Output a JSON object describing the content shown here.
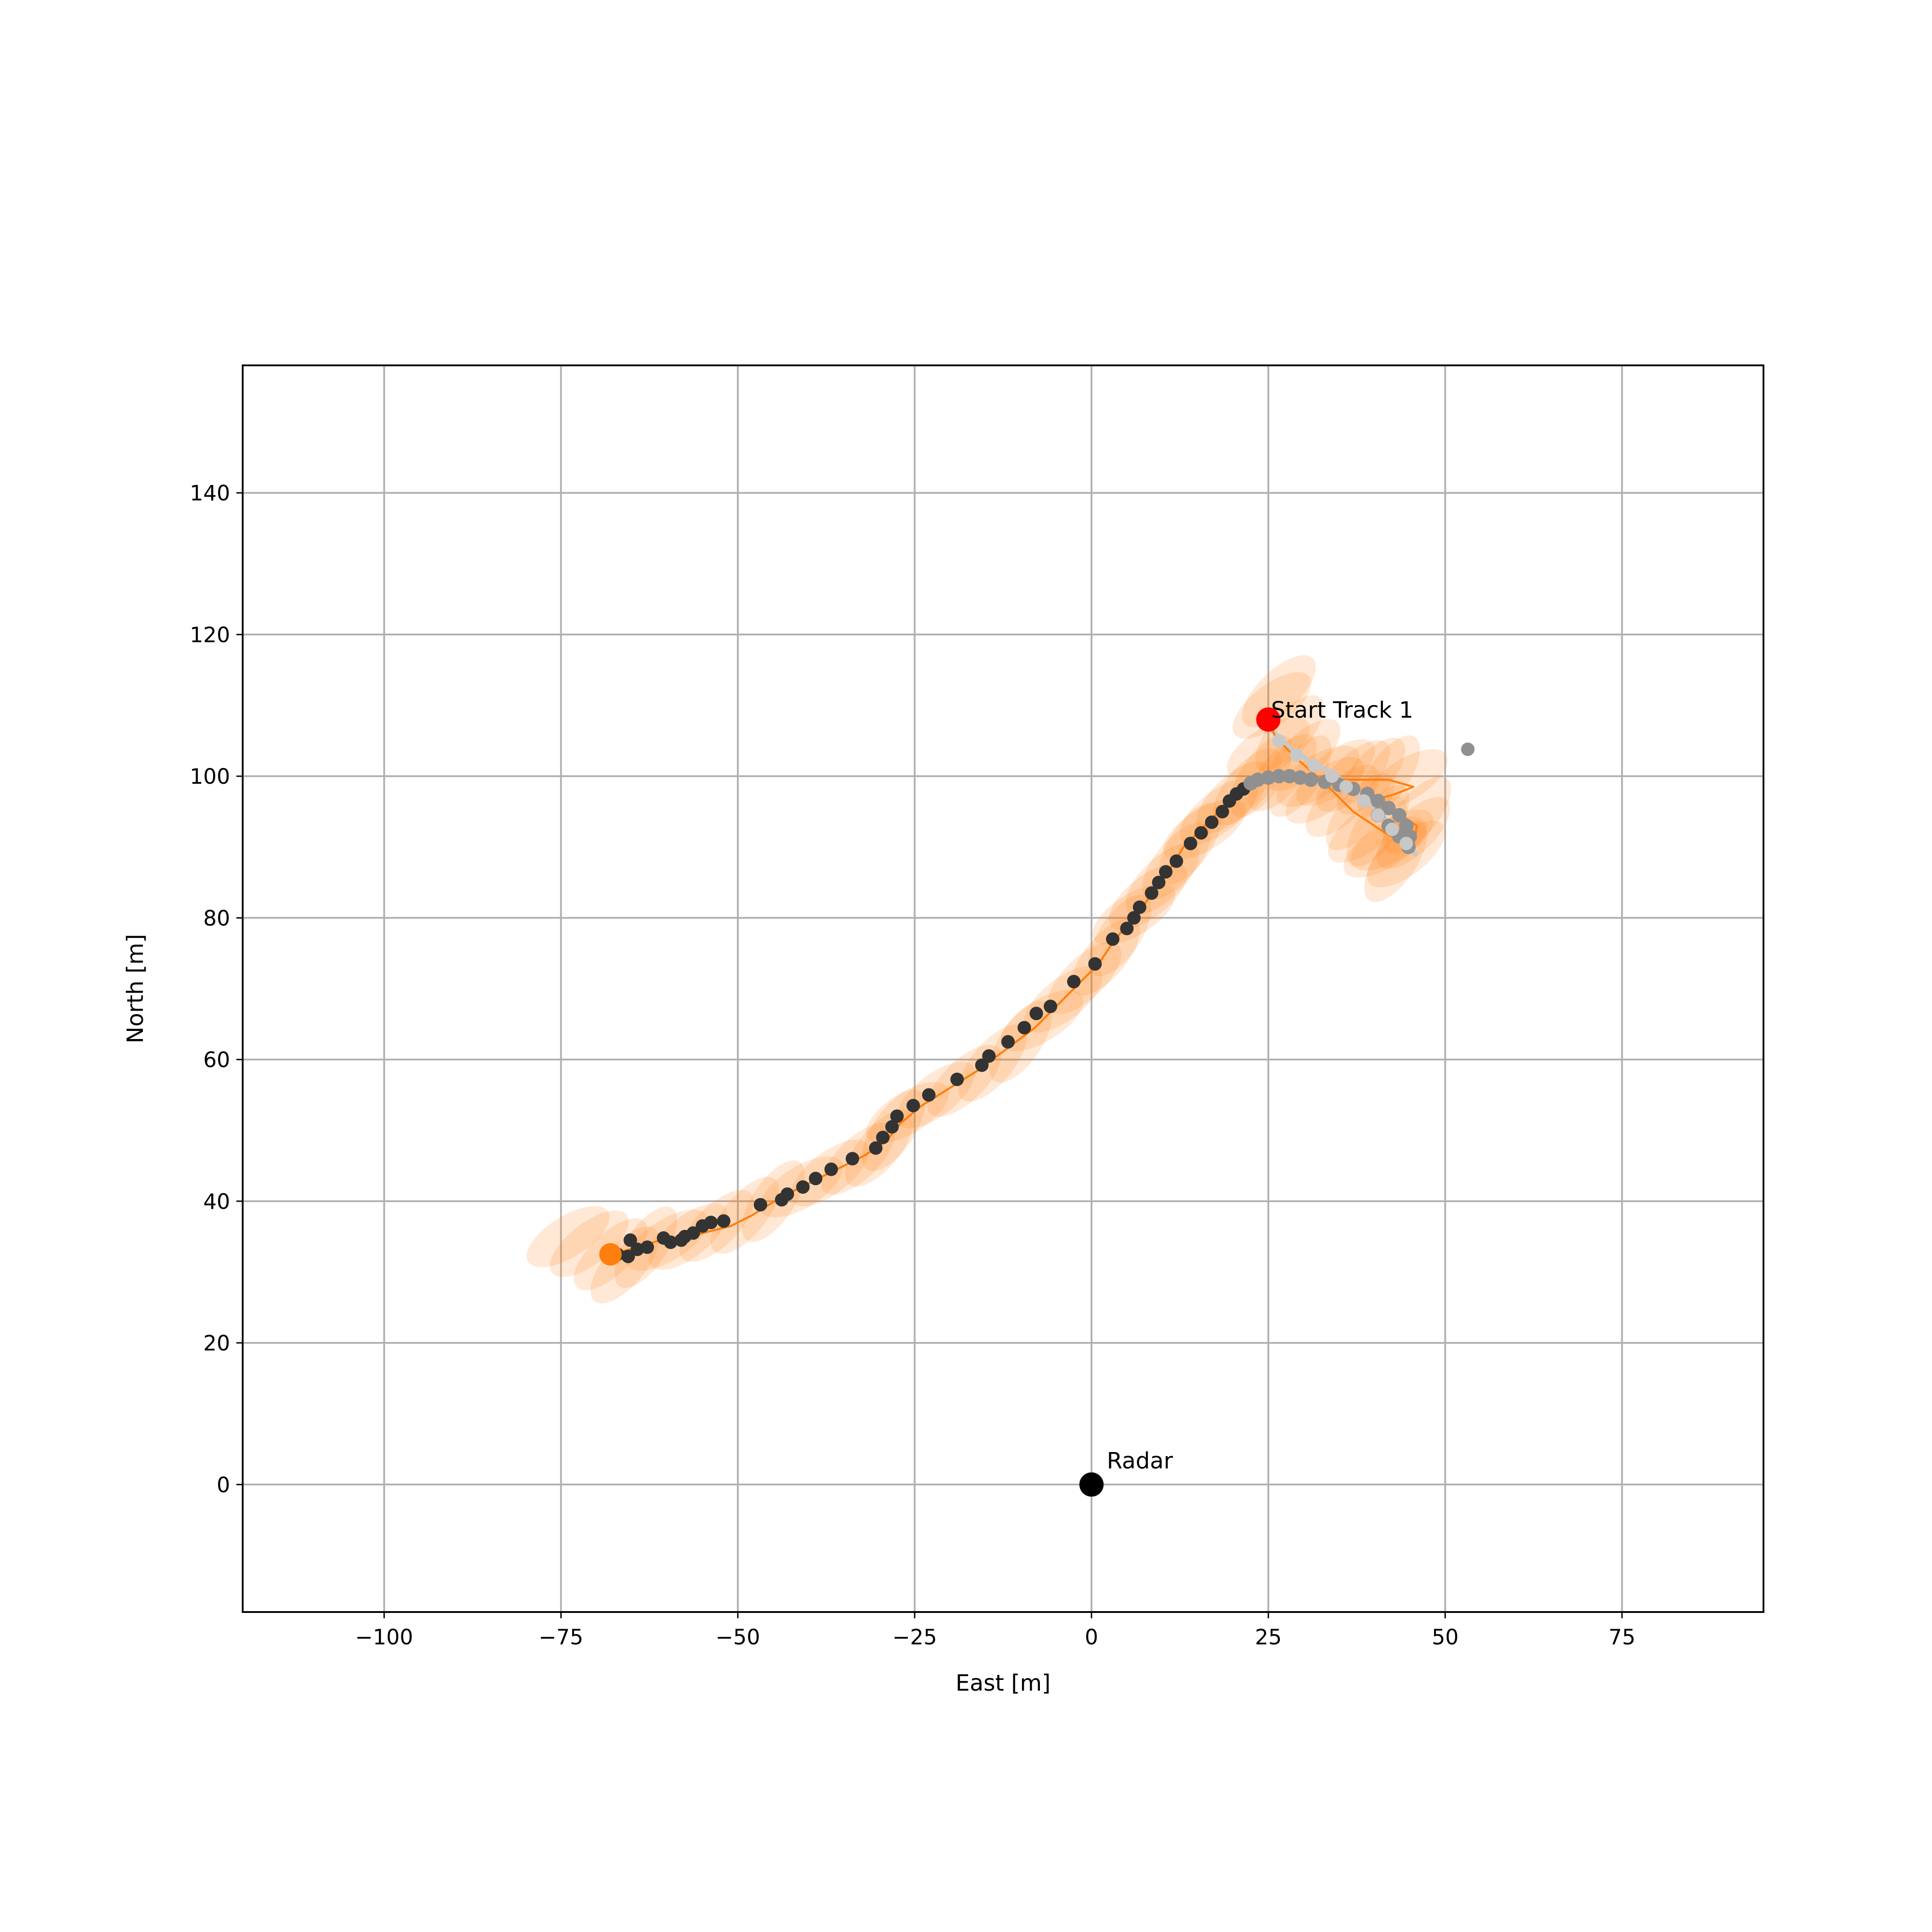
{
  "chart_data": {
    "type": "scatter",
    "title": "",
    "xlabel": "East [m]",
    "ylabel": "North [m]",
    "xlim": [
      -120,
      95
    ],
    "ylim": [
      -18,
      158
    ],
    "xticks": [
      -100,
      -75,
      -50,
      -25,
      0,
      25,
      50,
      75
    ],
    "xtick_labels": [
      "−100",
      "−75",
      "−50",
      "−25",
      "0",
      "25",
      "50",
      "75"
    ],
    "yticks": [
      0,
      20,
      40,
      60,
      80,
      100,
      120,
      140
    ],
    "ytick_labels": [
      "0",
      "20",
      "40",
      "60",
      "80",
      "100",
      "120",
      "140"
    ],
    "grid": true,
    "legend": null,
    "colors": {
      "track": "#ff7f0e",
      "ellipse": "#ff7f0e",
      "detection_dark": "#333333",
      "detection_gray": "#909090",
      "trail_light": "#c8c8c8",
      "start_marker": "#ff0000",
      "radar": "#000000",
      "grid": "#b0b0b0"
    },
    "annotations": [
      {
        "name": "radar",
        "text": "Radar",
        "x": 0,
        "y": 0
      },
      {
        "name": "start-track",
        "text": "Start Track 1",
        "x": 25,
        "y": 108
      }
    ],
    "radar": {
      "x": 0,
      "y": 0
    },
    "start_marker": {
      "x": 25,
      "y": 108
    },
    "end_marker": {
      "x": -68,
      "y": 32.5
    },
    "outlier_point": {
      "x": 53.2,
      "y": 103.8
    },
    "detections_dark": [
      [
        -67,
        32.5
      ],
      [
        -65.5,
        32.2
      ],
      [
        -65.2,
        34.5
      ],
      [
        -64.2,
        33.2
      ],
      [
        -62.8,
        33.5
      ],
      [
        -60.5,
        34.8
      ],
      [
        -59.5,
        34.2
      ],
      [
        -58,
        34.5
      ],
      [
        -57.5,
        35
      ],
      [
        -56.3,
        35.5
      ],
      [
        -55,
        36.5
      ],
      [
        -53.8,
        37
      ],
      [
        -52,
        37.2
      ],
      [
        -46.8,
        39.5
      ],
      [
        -43.8,
        40.2
      ],
      [
        -43,
        41
      ],
      [
        -40.8,
        42
      ],
      [
        -39,
        43.2
      ],
      [
        -36.8,
        44.5
      ],
      [
        -33.8,
        46
      ],
      [
        -30.5,
        47.5
      ],
      [
        -29.5,
        49
      ],
      [
        -28.2,
        50.5
      ],
      [
        -27.5,
        52
      ],
      [
        -25.2,
        53.5
      ],
      [
        -23,
        55
      ],
      [
        -19,
        57.2
      ],
      [
        -15.5,
        59.2
      ],
      [
        -14.5,
        60.5
      ],
      [
        -11.8,
        62.5
      ],
      [
        -9.5,
        64.5
      ],
      [
        -7.8,
        66.5
      ],
      [
        -5.8,
        67.5
      ],
      [
        -2.5,
        71
      ],
      [
        0.5,
        73.5
      ],
      [
        3,
        77
      ],
      [
        5,
        78.5
      ],
      [
        6,
        80
      ],
      [
        6.8,
        81.5
      ],
      [
        8.5,
        83.5
      ],
      [
        9.5,
        85
      ],
      [
        10.5,
        86.5
      ],
      [
        12,
        88
      ],
      [
        14,
        90.5
      ],
      [
        15.5,
        92
      ],
      [
        17,
        93.5
      ],
      [
        18.5,
        95
      ],
      [
        19.5,
        96.5
      ],
      [
        20.5,
        97.5
      ],
      [
        21.5,
        98.2
      ]
    ],
    "detections_gray": [
      [
        22.5,
        99
      ],
      [
        23.5,
        99.5
      ],
      [
        25,
        99.8
      ],
      [
        26.5,
        100
      ],
      [
        28,
        100
      ],
      [
        29.5,
        99.8
      ],
      [
        31,
        99.5
      ],
      [
        33,
        99.2
      ],
      [
        35,
        98.8
      ],
      [
        37,
        98.2
      ],
      [
        39,
        97.5
      ],
      [
        40.5,
        96.5
      ],
      [
        42,
        95.5
      ],
      [
        43.5,
        94.5
      ],
      [
        44.5,
        93
      ],
      [
        45,
        91.5
      ],
      [
        44.8,
        90
      ],
      [
        43.5,
        91.5
      ],
      [
        42,
        93
      ],
      [
        40.5,
        94.5
      ]
    ],
    "detections_light": [
      [
        26.5,
        105
      ],
      [
        29,
        103
      ],
      [
        31.5,
        101.5
      ],
      [
        34,
        100
      ],
      [
        36,
        98.5
      ],
      [
        38.5,
        96.5
      ],
      [
        40.5,
        94.5
      ],
      [
        42.5,
        92.5
      ],
      [
        44.5,
        90.5
      ]
    ],
    "track": [
      [
        -68,
        32.5
      ],
      [
        -66,
        33
      ],
      [
        -64,
        33.5
      ],
      [
        -61,
        34.5
      ],
      [
        -58,
        34.5
      ],
      [
        -55,
        35.5
      ],
      [
        -51,
        36.5
      ],
      [
        -48,
        38
      ],
      [
        -44,
        40.5
      ],
      [
        -40,
        42.5
      ],
      [
        -36,
        44.5
      ],
      [
        -32,
        46.5
      ],
      [
        -29,
        48.5
      ],
      [
        -27,
        51
      ],
      [
        -24,
        53.5
      ],
      [
        -20,
        56
      ],
      [
        -16,
        58.5
      ],
      [
        -12,
        61.5
      ],
      [
        -8,
        64.5
      ],
      [
        -5,
        67.5
      ],
      [
        -2,
        70.5
      ],
      [
        1,
        73.5
      ],
      [
        3,
        76.5
      ],
      [
        5,
        79
      ],
      [
        7.5,
        82
      ],
      [
        9.5,
        84.5
      ],
      [
        11.5,
        87.5
      ],
      [
        13,
        90
      ],
      [
        15,
        92
      ],
      [
        17.5,
        94.5
      ],
      [
        20,
        97.5
      ],
      [
        22.5,
        99.5
      ],
      [
        25,
        100
      ],
      [
        28,
        100
      ],
      [
        32,
        99.5
      ],
      [
        37,
        99.5
      ],
      [
        42,
        99.5
      ],
      [
        45.5,
        98.5
      ],
      [
        43,
        97.5
      ],
      [
        39.5,
        96.5
      ],
      [
        43,
        95
      ],
      [
        46,
        93
      ],
      [
        45.5,
        90
      ],
      [
        41.5,
        92
      ],
      [
        37,
        95
      ],
      [
        33,
        99
      ],
      [
        29,
        102.5
      ],
      [
        26,
        105.5
      ],
      [
        25,
        108
      ]
    ],
    "trail_light": [
      [
        25.5,
        106.5
      ],
      [
        28,
        104
      ],
      [
        31,
        102
      ],
      [
        34,
        100.5
      ],
      [
        36.5,
        98.5
      ],
      [
        39,
        96.5
      ],
      [
        41,
        94.5
      ],
      [
        43,
        92.5
      ],
      [
        45,
        90.5
      ],
      [
        45.8,
        89
      ]
    ],
    "ellipse_centers": [
      [
        -74,
        35
      ],
      [
        -71,
        34
      ],
      [
        -68,
        32.5
      ],
      [
        -66,
        31
      ],
      [
        -63,
        33.5
      ],
      [
        -60,
        34.5
      ],
      [
        -57,
        35
      ],
      [
        -53,
        36.5
      ],
      [
        -49,
        38
      ],
      [
        -45,
        40
      ],
      [
        -41,
        42
      ],
      [
        -37,
        44
      ],
      [
        -33,
        46
      ],
      [
        -30,
        47.5
      ],
      [
        -28,
        50
      ],
      [
        -26,
        52.5
      ],
      [
        -22,
        55
      ],
      [
        -18,
        57
      ],
      [
        -14,
        59.5
      ],
      [
        -10,
        62.5
      ],
      [
        -7,
        65.5
      ],
      [
        -4,
        68.5
      ],
      [
        -1,
        71.5
      ],
      [
        2,
        74.5
      ],
      [
        4,
        77.5
      ],
      [
        6,
        80.5
      ],
      [
        8,
        83
      ],
      [
        10,
        85.5
      ],
      [
        12,
        88
      ],
      [
        14,
        90.5
      ],
      [
        16,
        92.5
      ],
      [
        18,
        95
      ],
      [
        20,
        97
      ],
      [
        22,
        98.5
      ],
      [
        24,
        100
      ],
      [
        25,
        104
      ],
      [
        25.5,
        110
      ],
      [
        26.5,
        112
      ],
      [
        27,
        100.5
      ],
      [
        29.5,
        100
      ],
      [
        32,
        100
      ],
      [
        34.5,
        100.5
      ],
      [
        37,
        100
      ],
      [
        39.5,
        100
      ],
      [
        42,
        100
      ],
      [
        44.5,
        99.5
      ],
      [
        33,
        98
      ],
      [
        35.5,
        96.5
      ],
      [
        38,
        95
      ],
      [
        40.5,
        93
      ],
      [
        42.5,
        91
      ],
      [
        44.5,
        89
      ],
      [
        45.5,
        92
      ],
      [
        46,
        94.5
      ],
      [
        43,
        88
      ],
      [
        41.5,
        90
      ],
      [
        39,
        92.5
      ],
      [
        30,
        103
      ],
      [
        28,
        106
      ]
    ]
  },
  "text": {
    "xlabel": "East [m]",
    "ylabel": "North [m]",
    "radar_label": "Radar",
    "start_label": "Start Track 1"
  }
}
